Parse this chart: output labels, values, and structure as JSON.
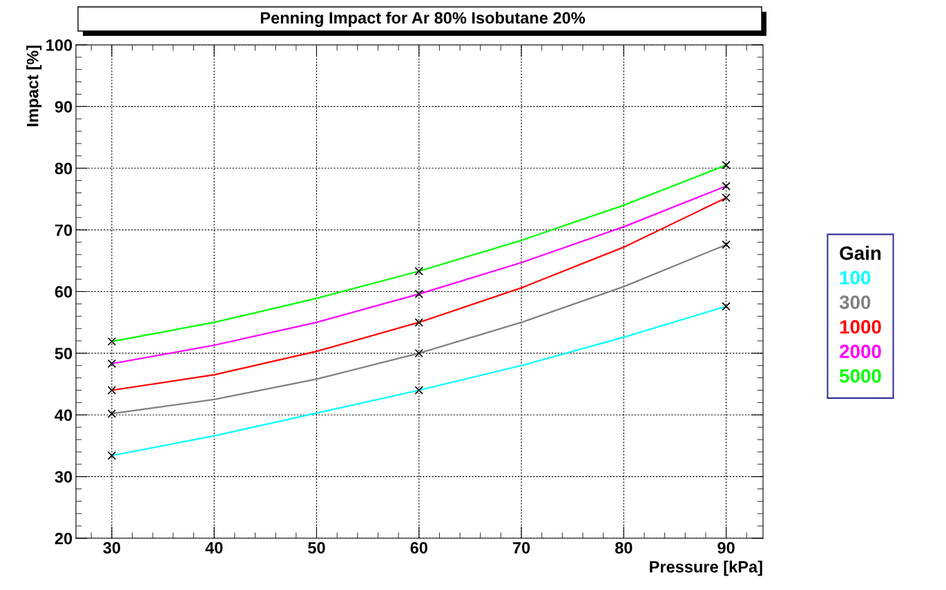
{
  "chart_data": {
    "type": "line",
    "title": "Penning Impact for Ar 80% Isobutane 20%",
    "xlabel": "Pressure [kPa]",
    "ylabel": "Impact [%]",
    "legend_title": "Gain",
    "x": [
      30,
      40,
      50,
      60,
      70,
      80,
      90
    ],
    "series": [
      {
        "name": "100",
        "color": "#00ffff",
        "values": [
          33.4,
          36.6,
          40.3,
          44.0,
          48.0,
          52.6,
          57.6
        ]
      },
      {
        "name": "300",
        "color": "#808080",
        "values": [
          40.2,
          42.5,
          45.8,
          50.0,
          55.0,
          60.8,
          67.6
        ]
      },
      {
        "name": "1000",
        "color": "#ff0000",
        "values": [
          44.0,
          46.5,
          50.3,
          55.0,
          60.6,
          67.2,
          75.2
        ]
      },
      {
        "name": "2000",
        "color": "#ff00ff",
        "values": [
          48.3,
          51.3,
          55.0,
          59.6,
          64.7,
          70.5,
          77.1
        ]
      },
      {
        "name": "5000",
        "color": "#00ff00",
        "values": [
          51.9,
          55.0,
          58.9,
          63.3,
          68.3,
          74.0,
          80.5
        ]
      },
      {
        "type": "scatter",
        "color": "#000000",
        "marker": "cross",
        "x": [
          30,
          30,
          30,
          30,
          30,
          60,
          60,
          60,
          60,
          60,
          90,
          90,
          90,
          90,
          90
        ],
        "values": [
          33.4,
          40.2,
          44.0,
          48.3,
          51.9,
          44.0,
          50.0,
          55.0,
          59.6,
          63.3,
          57.6,
          67.6,
          75.2,
          77.1,
          80.5
        ]
      }
    ],
    "xlim": [
      26.5,
      93.6
    ],
    "ylim": [
      20,
      100
    ],
    "xticks": [
      30,
      40,
      50,
      60,
      70,
      80,
      90
    ],
    "yticks": [
      20,
      30,
      40,
      50,
      60,
      70,
      80,
      90,
      100
    ],
    "grid": true,
    "line_style": "solid",
    "legend": "right"
  }
}
